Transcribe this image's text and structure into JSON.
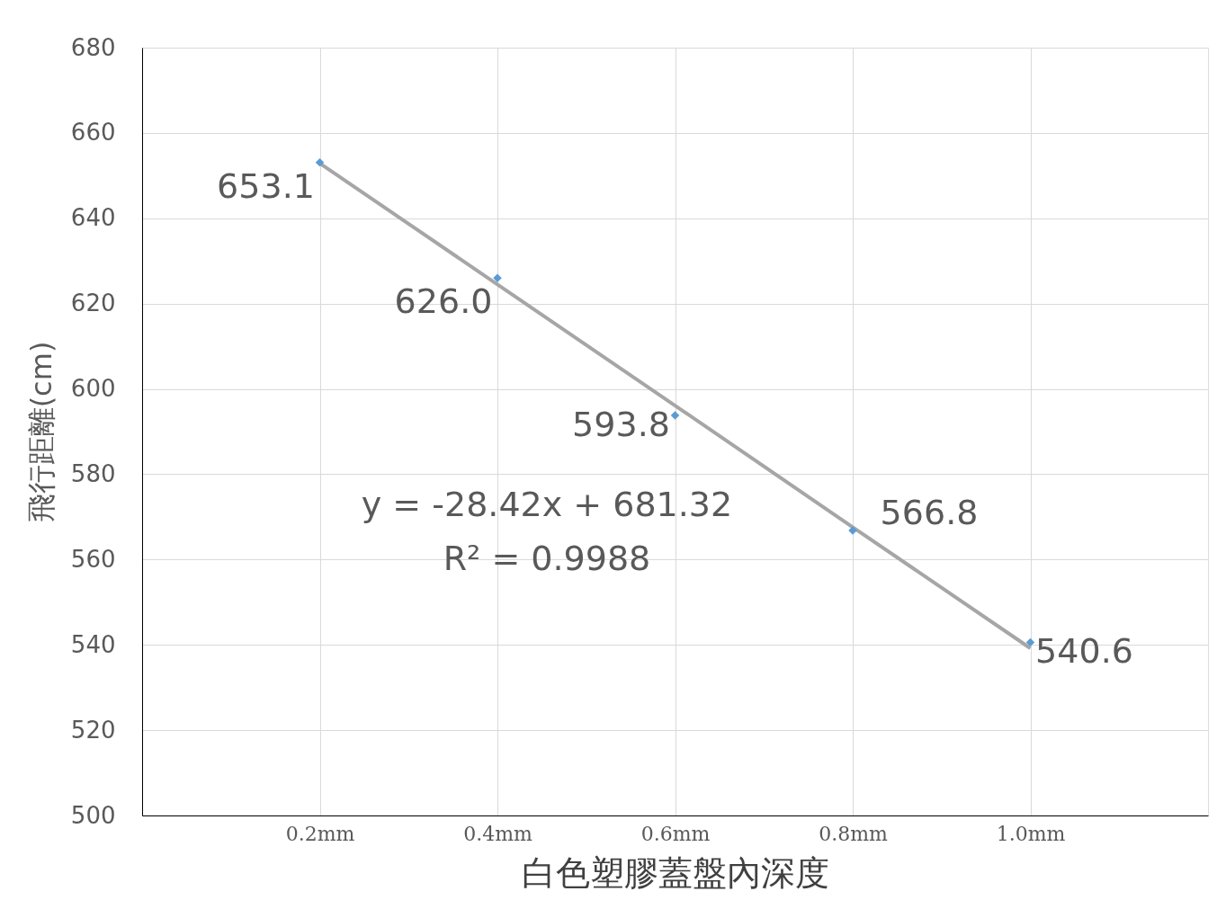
{
  "chart_data": {
    "type": "scatter",
    "xlabel": "白色塑膠蓋盤內深度",
    "ylabel": "飛行距離(cm)",
    "categories": [
      "0.2mm",
      "0.4mm",
      "0.6mm",
      "0.8mm",
      "1.0mm"
    ],
    "ylim": [
      500,
      680
    ],
    "yticks": [
      500,
      520,
      540,
      560,
      580,
      600,
      620,
      640,
      660,
      680
    ],
    "grid": true,
    "series": [
      {
        "type": "line",
        "marker": "none",
        "color": "#a6a6a6",
        "values": [
          652.9,
          624.5,
          596.1,
          567.6,
          539.2
        ]
      },
      {
        "marker": "diamond",
        "color": "#5b9bd5",
        "values": [
          653.1,
          626.0,
          593.8,
          566.8,
          540.6
        ],
        "value_labels": [
          "653.1",
          "626.0",
          "593.8",
          "566.8",
          "540.6"
        ]
      }
    ],
    "annotations": [
      "y = -28.42x + 681.32",
      "R² = 0.9988"
    ]
  }
}
